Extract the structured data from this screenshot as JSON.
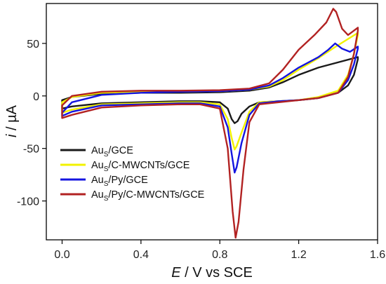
{
  "chart_data": {
    "type": "line",
    "title": "",
    "xlabel": {
      "italic": "E",
      "rest": " / V vs SCE"
    },
    "ylabel": {
      "italic": "i",
      "rest": " / µA"
    },
    "xlim": [
      -0.08,
      1.6
    ],
    "ylim": [
      -137,
      88
    ],
    "xticks": [
      {
        "v": 0.0,
        "label": "0.0"
      },
      {
        "v": 0.4,
        "label": "0.4"
      },
      {
        "v": 0.8,
        "label": "0.8"
      },
      {
        "v": 1.2,
        "label": "1.2"
      },
      {
        "v": 1.6,
        "label": "1.6"
      }
    ],
    "yticks": [
      {
        "v": 50,
        "label": "50"
      },
      {
        "v": 0,
        "label": "0"
      },
      {
        "v": -50,
        "label": "-50"
      },
      {
        "v": -100,
        "label": "-100"
      }
    ],
    "grid": false,
    "legend_position": "bottom-left",
    "series": [
      {
        "name": "AuS/GCE",
        "legend": {
          "base": "Au",
          "sub": "S",
          "rest": "/GCE"
        },
        "color": "#1a1a1a",
        "points": [
          [
            0.0,
            -4
          ],
          [
            0.05,
            -1
          ],
          [
            0.2,
            2
          ],
          [
            0.4,
            3
          ],
          [
            0.6,
            3
          ],
          [
            0.8,
            3.5
          ],
          [
            0.95,
            5
          ],
          [
            1.05,
            8
          ],
          [
            1.12,
            13
          ],
          [
            1.2,
            20
          ],
          [
            1.3,
            27
          ],
          [
            1.4,
            32
          ],
          [
            1.5,
            37
          ],
          [
            1.5,
            35
          ],
          [
            1.48,
            20
          ],
          [
            1.45,
            10
          ],
          [
            1.4,
            3
          ],
          [
            1.3,
            -2
          ],
          [
            1.2,
            -4
          ],
          [
            1.1,
            -5
          ],
          [
            1.0,
            -6
          ],
          [
            0.95,
            -10
          ],
          [
            0.91,
            -17
          ],
          [
            0.89,
            -24
          ],
          [
            0.875,
            -26
          ],
          [
            0.86,
            -22
          ],
          [
            0.84,
            -12
          ],
          [
            0.8,
            -6
          ],
          [
            0.7,
            -5
          ],
          [
            0.6,
            -5
          ],
          [
            0.4,
            -6
          ],
          [
            0.2,
            -7
          ],
          [
            0.05,
            -10
          ],
          [
            0.0,
            -12
          ]
        ]
      },
      {
        "name": "AuS/C-MWCNTs/GCE",
        "legend": {
          "base": "Au",
          "sub": "S",
          "rest": "/C-MWCNTs/GCE"
        },
        "color": "#f2f200",
        "points": [
          [
            0.0,
            -6
          ],
          [
            0.05,
            -1
          ],
          [
            0.2,
            3
          ],
          [
            0.4,
            4
          ],
          [
            0.6,
            4
          ],
          [
            0.8,
            4.5
          ],
          [
            0.95,
            6
          ],
          [
            1.05,
            9
          ],
          [
            1.12,
            15
          ],
          [
            1.2,
            25
          ],
          [
            1.3,
            36
          ],
          [
            1.38,
            46
          ],
          [
            1.44,
            53
          ],
          [
            1.5,
            60
          ],
          [
            1.5,
            58
          ],
          [
            1.48,
            40
          ],
          [
            1.45,
            20
          ],
          [
            1.4,
            5
          ],
          [
            1.3,
            -1
          ],
          [
            1.2,
            -4
          ],
          [
            1.1,
            -5
          ],
          [
            1.0,
            -6
          ],
          [
            0.95,
            -15
          ],
          [
            0.91,
            -35
          ],
          [
            0.885,
            -48
          ],
          [
            0.875,
            -51
          ],
          [
            0.86,
            -40
          ],
          [
            0.84,
            -22
          ],
          [
            0.8,
            -8
          ],
          [
            0.7,
            -6
          ],
          [
            0.6,
            -6
          ],
          [
            0.4,
            -7
          ],
          [
            0.2,
            -8
          ],
          [
            0.05,
            -13
          ],
          [
            0.0,
            -16
          ]
        ]
      },
      {
        "name": "AuS/Py/GCE",
        "legend": {
          "base": "Au",
          "sub": "S",
          "rest": "/Py/GCE"
        },
        "color": "#1414e0",
        "points": [
          [
            0.0,
            -16
          ],
          [
            0.05,
            -6
          ],
          [
            0.2,
            1
          ],
          [
            0.4,
            3
          ],
          [
            0.6,
            4
          ],
          [
            0.8,
            4.5
          ],
          [
            0.95,
            6
          ],
          [
            1.05,
            10
          ],
          [
            1.12,
            17
          ],
          [
            1.2,
            27
          ],
          [
            1.3,
            37
          ],
          [
            1.35,
            44
          ],
          [
            1.385,
            50
          ],
          [
            1.42,
            45
          ],
          [
            1.46,
            42
          ],
          [
            1.5,
            47
          ],
          [
            1.5,
            45
          ],
          [
            1.48,
            30
          ],
          [
            1.45,
            15
          ],
          [
            1.4,
            3
          ],
          [
            1.3,
            -2
          ],
          [
            1.2,
            -4
          ],
          [
            1.1,
            -5
          ],
          [
            1.0,
            -7
          ],
          [
            0.95,
            -18
          ],
          [
            0.91,
            -45
          ],
          [
            0.885,
            -68
          ],
          [
            0.875,
            -73
          ],
          [
            0.86,
            -55
          ],
          [
            0.84,
            -30
          ],
          [
            0.8,
            -10
          ],
          [
            0.7,
            -7
          ],
          [
            0.6,
            -7
          ],
          [
            0.4,
            -8
          ],
          [
            0.2,
            -9
          ],
          [
            0.05,
            -15
          ],
          [
            0.0,
            -19
          ]
        ]
      },
      {
        "name": "AuS/Py/C-MWCNTs/GCE",
        "legend": {
          "base": "Au",
          "sub": "S",
          "rest": "/Py/C-MWCNTs/GCE"
        },
        "color": "#b22222",
        "points": [
          [
            0.0,
            -9
          ],
          [
            0.05,
            0
          ],
          [
            0.2,
            4
          ],
          [
            0.4,
            5
          ],
          [
            0.6,
            5
          ],
          [
            0.8,
            5.5
          ],
          [
            0.95,
            7
          ],
          [
            1.05,
            12
          ],
          [
            1.12,
            25
          ],
          [
            1.2,
            44
          ],
          [
            1.28,
            58
          ],
          [
            1.34,
            70
          ],
          [
            1.375,
            83
          ],
          [
            1.39,
            80
          ],
          [
            1.42,
            64
          ],
          [
            1.45,
            58
          ],
          [
            1.5,
            65
          ],
          [
            1.5,
            62
          ],
          [
            1.48,
            40
          ],
          [
            1.45,
            18
          ],
          [
            1.4,
            3
          ],
          [
            1.3,
            -2
          ],
          [
            1.2,
            -4
          ],
          [
            1.1,
            -6
          ],
          [
            1.0,
            -8
          ],
          [
            0.95,
            -25
          ],
          [
            0.92,
            -70
          ],
          [
            0.895,
            -120
          ],
          [
            0.88,
            -135
          ],
          [
            0.865,
            -110
          ],
          [
            0.84,
            -50
          ],
          [
            0.8,
            -12
          ],
          [
            0.7,
            -8
          ],
          [
            0.6,
            -8
          ],
          [
            0.4,
            -9
          ],
          [
            0.2,
            -11
          ],
          [
            0.05,
            -18
          ],
          [
            0.0,
            -21
          ]
        ]
      }
    ]
  }
}
